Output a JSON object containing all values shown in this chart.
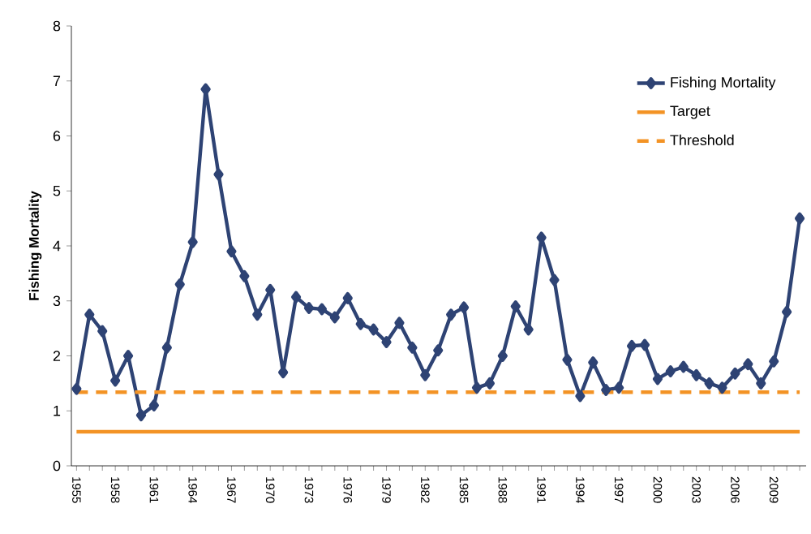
{
  "chart_data": {
    "type": "line",
    "ylabel": "Fishing Mortality",
    "categories": [
      "1955",
      null,
      null,
      "1958",
      null,
      null,
      "1961",
      null,
      null,
      "1964",
      null,
      null,
      "1967",
      null,
      null,
      "1970",
      null,
      null,
      "1973",
      null,
      null,
      "1976",
      null,
      null,
      "1979",
      null,
      null,
      "1982",
      null,
      null,
      "1985",
      null,
      null,
      "1988",
      null,
      null,
      "1991",
      null,
      null,
      "1994",
      null,
      null,
      "1997",
      null,
      null,
      "2000",
      null,
      null,
      "2003",
      null,
      null,
      "2006",
      null,
      null,
      "2009",
      null,
      null
    ],
    "series": [
      {
        "name": "Fishing Mortality",
        "color": "#2e4374",
        "values": [
          1.4,
          2.75,
          2.45,
          1.55,
          2.0,
          0.92,
          1.1,
          2.15,
          3.3,
          4.07,
          6.85,
          5.3,
          3.9,
          3.45,
          2.75,
          3.2,
          1.7,
          3.07,
          2.87,
          2.85,
          2.7,
          3.05,
          2.58,
          2.48,
          2.25,
          2.6,
          2.15,
          1.65,
          2.1,
          2.75,
          2.88,
          1.42,
          1.5,
          2.0,
          2.9,
          2.48,
          4.15,
          3.38,
          1.93,
          1.27,
          1.88,
          1.38,
          1.42,
          2.18,
          2.2,
          1.58,
          1.72,
          1.8,
          1.65,
          1.5,
          1.42,
          1.68,
          1.85,
          1.5,
          1.9,
          2.8,
          4.5
        ]
      }
    ],
    "ref_lines": [
      {
        "axis": "y",
        "value": 0.62,
        "label": "Target",
        "color": "#f39325",
        "line_style": "solid"
      },
      {
        "axis": "y",
        "value": 1.34,
        "label": "Threshold",
        "color": "#f39325",
        "line_style": "dashed"
      }
    ],
    "ylim": [
      0,
      8
    ],
    "yticks": [
      0,
      1,
      2,
      3,
      4,
      5,
      6,
      7,
      8
    ],
    "grid": false,
    "legend": "top right",
    "marker": "diamond",
    "line_style": "solid"
  }
}
